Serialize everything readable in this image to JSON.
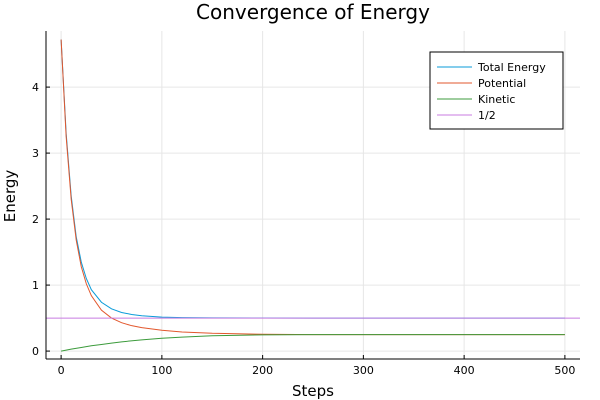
{
  "chart_data": {
    "type": "line",
    "title": "Convergence of Energy",
    "xlabel": "Steps",
    "ylabel": "Energy",
    "xlim": [
      -15,
      515
    ],
    "ylim": [
      -0.12,
      4.85
    ],
    "xticks": [
      0,
      100,
      200,
      300,
      400,
      500
    ],
    "yticks": [
      0,
      1,
      2,
      3,
      4
    ],
    "grid": true,
    "legend_position": "top-right",
    "series": [
      {
        "name": " Total Energy",
        "color": "#0a9bd9",
        "x": [
          0,
          5,
          10,
          15,
          20,
          25,
          30,
          40,
          50,
          60,
          70,
          80,
          100,
          120,
          150,
          200,
          250,
          300,
          400,
          500
        ],
        "y": [
          4.72,
          3.3,
          2.35,
          1.73,
          1.35,
          1.1,
          0.93,
          0.74,
          0.64,
          0.585,
          0.555,
          0.535,
          0.515,
          0.507,
          0.503,
          0.501,
          0.5,
          0.5,
          0.5,
          0.5
        ]
      },
      {
        "name": "Potential",
        "color": "#e2572d",
        "x": [
          0,
          5,
          10,
          15,
          20,
          25,
          30,
          40,
          50,
          60,
          70,
          80,
          100,
          120,
          150,
          200,
          250,
          300,
          400,
          500
        ],
        "y": [
          4.72,
          3.25,
          2.3,
          1.68,
          1.28,
          1.02,
          0.84,
          0.62,
          0.5,
          0.43,
          0.385,
          0.355,
          0.315,
          0.29,
          0.27,
          0.255,
          0.25,
          0.25,
          0.25,
          0.25
        ]
      },
      {
        "name": "Kinetic",
        "color": "#3c9b3c",
        "x": [
          0,
          10,
          20,
          30,
          40,
          50,
          60,
          80,
          100,
          120,
          150,
          200,
          250,
          300,
          400,
          500
        ],
        "y": [
          0.0,
          0.03,
          0.055,
          0.08,
          0.1,
          0.12,
          0.14,
          0.17,
          0.195,
          0.212,
          0.232,
          0.245,
          0.249,
          0.25,
          0.25,
          0.25
        ]
      },
      {
        "name": "1/2",
        "color": "#c87be0",
        "x": [
          -15,
          515
        ],
        "y": [
          0.5,
          0.5
        ]
      }
    ]
  }
}
